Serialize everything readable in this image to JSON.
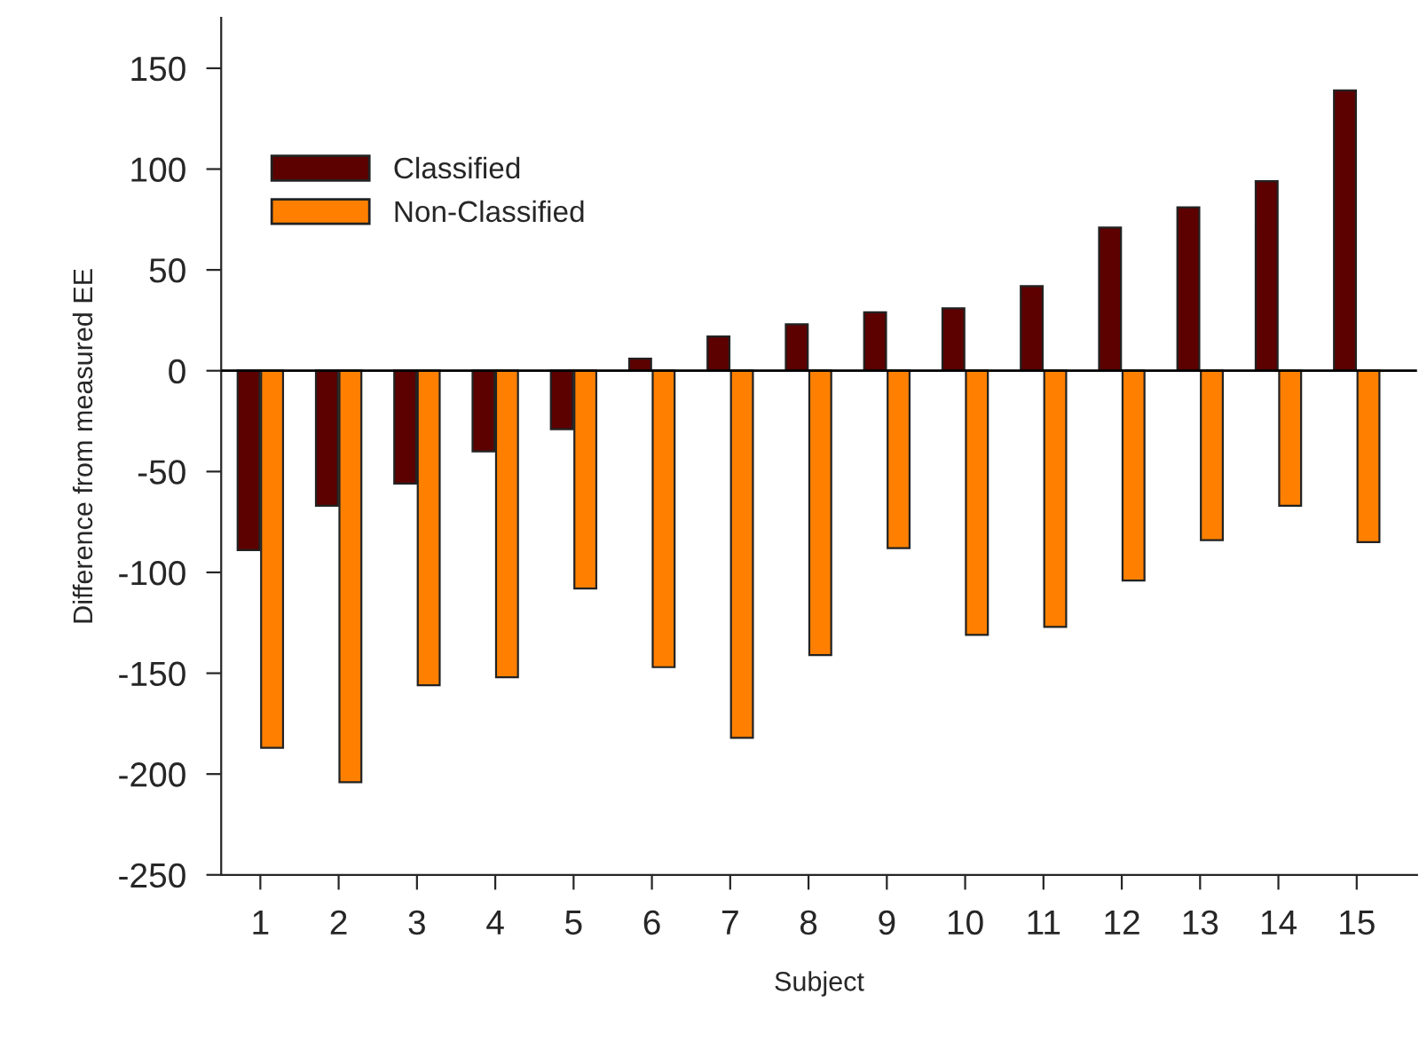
{
  "chart_data": {
    "type": "bar",
    "xlabel": "Subject",
    "ylabel": "Difference from measured EE",
    "categories": [
      "1",
      "2",
      "3",
      "4",
      "5",
      "6",
      "7",
      "8",
      "9",
      "10",
      "11",
      "12",
      "13",
      "14",
      "15"
    ],
    "series": [
      {
        "name": "Classified",
        "color": "#5c0000",
        "values": [
          -89,
          -67,
          -56,
          -40,
          -29,
          6,
          17,
          23,
          29,
          31,
          42,
          71,
          81,
          94,
          139
        ]
      },
      {
        "name": "Non-Classified",
        "color": "#ff8000",
        "values": [
          -187,
          -204,
          -156,
          -152,
          -108,
          -147,
          -182,
          -141,
          -88,
          -131,
          -127,
          -104,
          -84,
          -67,
          -85
        ]
      }
    ],
    "ylim": [
      -250,
      175
    ],
    "yticks": [
      -250,
      -200,
      -150,
      -100,
      -50,
      0,
      50,
      100,
      150
    ],
    "ref_lines": [
      {
        "axis": "y",
        "value": 0,
        "color": "#000000"
      }
    ],
    "legend": "top left",
    "grid": false
  }
}
